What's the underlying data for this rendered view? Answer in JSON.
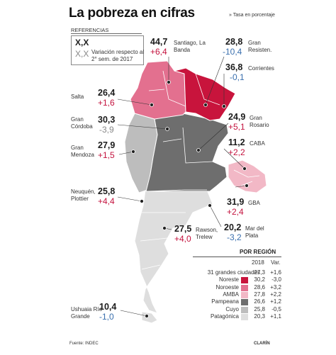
{
  "title": "La pobreza en cifras",
  "unit_note": "» Tasa en porcentaje",
  "legend": {
    "heading": "REFERENCIAS",
    "value_sample": "X,X",
    "change_sample": "X,X",
    "change_description": "Variación respecto al 2° sem. de 2017"
  },
  "cities": [
    {
      "id": "santiago",
      "name": "Santiago, La Banda",
      "value": "44,7",
      "change": "+6,4"
    },
    {
      "id": "resistencia",
      "name": "Gran Resisten.",
      "value": "28,8",
      "change": "-10,4"
    },
    {
      "id": "corrientes",
      "name": "Corrientes",
      "value": "36,8",
      "change": "-0,1"
    },
    {
      "id": "salta",
      "name": "Salta",
      "value": "26,4",
      "change": "+1,6"
    },
    {
      "id": "cordoba",
      "name": "Gran Córdoba",
      "value": "30,3",
      "change": "-3,9"
    },
    {
      "id": "rosario",
      "name": "Gran Rosario",
      "value": "24,9",
      "change": "+5,1"
    },
    {
      "id": "caba",
      "name": "CABA",
      "value": "11,2",
      "change": "+2,2"
    },
    {
      "id": "mendoza",
      "name": "Gran Mendoza",
      "value": "27,9",
      "change": "+1,5"
    },
    {
      "id": "neuquen",
      "name": "Neuquén, Plottier",
      "value": "25,8",
      "change": "+4,4"
    },
    {
      "id": "gba",
      "name": "GBA",
      "value": "31,9",
      "change": "+2,4"
    },
    {
      "id": "rawson",
      "name": "Rawson, Trelew",
      "value": "27,5",
      "change": "+4,0"
    },
    {
      "id": "mardelplata",
      "name": "Mar del Plata",
      "value": "20,2",
      "change": "-3,2"
    },
    {
      "id": "ushuaia",
      "name": "Ushuaia Río Grande",
      "value": "10,4",
      "change": "-1,0"
    }
  ],
  "by_region": {
    "heading": "POR REGIÓN",
    "col_year": "2018",
    "col_var": "Var.",
    "rows": [
      {
        "name": "31 grandes ciudades",
        "value": "27,3",
        "var": "+1,6",
        "color": ""
      },
      {
        "name": "Noreste",
        "value": "30,2",
        "var": "-3,0",
        "color": "#c8143c"
      },
      {
        "name": "Noroeste",
        "value": "28,6",
        "var": "+3,2",
        "color": "#e3708f"
      },
      {
        "name": "AMBA",
        "value": "27,8",
        "var": "+2,2",
        "color": "#f2b8c6"
      },
      {
        "name": "Pampeana",
        "value": "26,6",
        "var": "+1,2",
        "color": "#6e6e6e"
      },
      {
        "name": "Cuyo",
        "value": "25,8",
        "var": "-0,5",
        "color": "#bdbdbd"
      },
      {
        "name": "Patagónica",
        "value": "20,3",
        "var": "+1,1",
        "color": "#dedede"
      }
    ]
  },
  "source": "Fuente: INDEC",
  "credit": "CLARÍN",
  "colors": {
    "noreste": "#c8143c",
    "noroeste": "#e3708f",
    "amba": "#f2b8c6",
    "pampeana": "#6e6e6e",
    "cuyo": "#bdbdbd",
    "patagonica": "#dedede",
    "positive": "#c4123e",
    "negative": "#3a6fae"
  }
}
